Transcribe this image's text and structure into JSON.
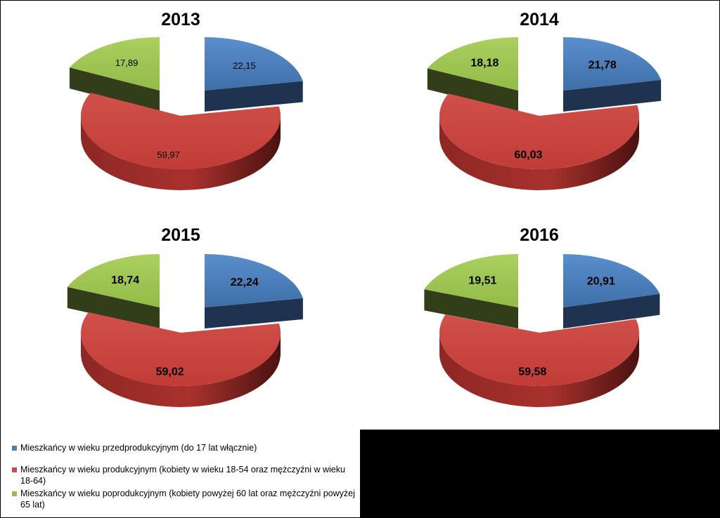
{
  "chart_data": [
    {
      "type": "pie",
      "title": "2013",
      "categories": [
        "Mieszkańcy w wieku przedprodukcyjnym (do 17 lat włącznie)",
        "Mieszkańcy w wieku produkcyjnym (kobiety w wieku 18-54 oraz mężczyźni w wieku 18-64)",
        "Mieszkańcy w wieku poprodukcyjnym (kobiety powyżej 60 lat oraz mężczyźni powyżej 65 lat)"
      ],
      "values": [
        22.15,
        59.97,
        17.89
      ],
      "labels": [
        "22,15",
        "59,97",
        "17,89"
      ],
      "bold_labels": false
    },
    {
      "type": "pie",
      "title": "2014",
      "categories": [
        "Mieszkańcy w wieku przedprodukcyjnym (do 17 lat włącznie)",
        "Mieszkańcy w wieku produkcyjnym (kobiety w wieku 18-54 oraz mężczyźni w wieku 18-64)",
        "Mieszkańcy w wieku poprodukcyjnym (kobiety powyżej 60 lat oraz mężczyźni powyżej 65 lat)"
      ],
      "values": [
        21.78,
        60.03,
        18.18
      ],
      "labels": [
        "21,78",
        "60,03",
        "18,18"
      ],
      "bold_labels": true
    },
    {
      "type": "pie",
      "title": "2015",
      "categories": [
        "Mieszkańcy w wieku przedprodukcyjnym (do 17 lat włącznie)",
        "Mieszkańcy w wieku produkcyjnym (kobiety w wieku 18-54 oraz mężczyźni w wieku 18-64)",
        "Mieszkańcy w wieku poprodukcyjnym (kobiety powyżej 60 lat oraz mężczyźni powyżej 65 lat)"
      ],
      "values": [
        22.24,
        59.02,
        18.74
      ],
      "labels": [
        "22,24",
        "59,02",
        "18,74"
      ],
      "bold_labels": true
    },
    {
      "type": "pie",
      "title": "2016",
      "categories": [
        "Mieszkańcy w wieku przedprodukcyjnym (do 17 lat włącznie)",
        "Mieszkańcy w wieku produkcyjnym (kobiety w wieku 18-54 oraz mężczyźni w wieku 18-64)",
        "Mieszkańcy w wieku poprodukcyjnym (kobiety powyżej 60 lat oraz mężczyźni powyżej 65 lat)"
      ],
      "values": [
        20.91,
        59.58,
        19.51
      ],
      "labels": [
        "20,91",
        "59,58",
        "19,51"
      ],
      "bold_labels": true
    }
  ],
  "legend": {
    "placement": "bottom-left",
    "items": [
      {
        "label": "Mieszkańcy w wieku przedprodukcyjnym (do 17 lat włącznie)",
        "color": "#4a7ebb"
      },
      {
        "label": "Mieszkańcy w wieku produkcyjnym (kobiety w wieku 18-54 oraz mężczyźni w wieku 18-64)",
        "color": "#c0504d"
      },
      {
        "label": "Mieszkańcy w wieku poprodukcyjnym (kobiety powyżej 60 lat oraz mężczyźni powyżej 65 lat)",
        "color": "#9bbb59"
      }
    ]
  },
  "colors": {
    "blue_top": "#4a7ebb",
    "blue_side": "#1f3350",
    "red_top": "#c9423d",
    "red_side": "#7a201d",
    "green_top": "#9bc34e",
    "green_side": "#323d1a"
  }
}
